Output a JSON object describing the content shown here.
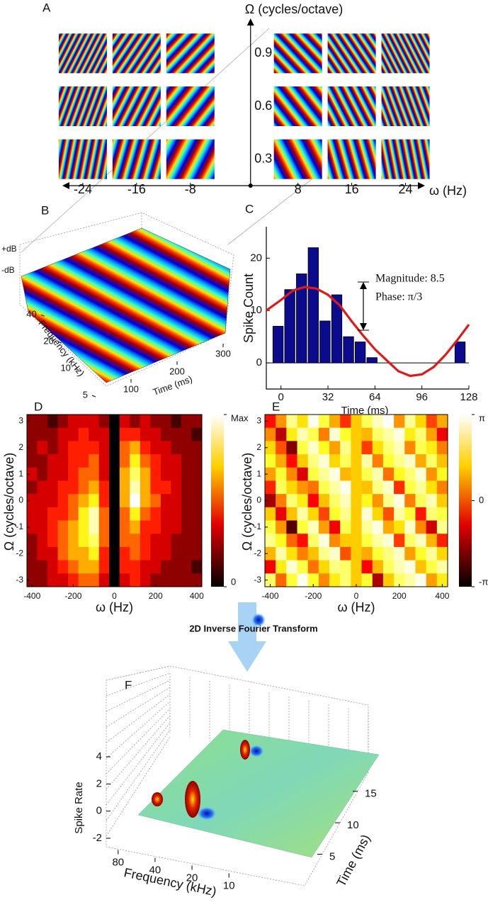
{
  "chart_data": [
    {
      "type": "grating_grid",
      "label": "A",
      "ylabel": "Ω (cycles/octave)",
      "xlabel": "ω (Hz)",
      "xticks": [
        -24,
        -16,
        -8,
        8,
        16,
        24
      ],
      "yticks": [
        0.3,
        0.6,
        0.9
      ],
      "xlim": [
        -30,
        29
      ],
      "ylim": [
        0.15,
        1.05
      ]
    },
    {
      "type": "surface",
      "label": "B",
      "zlabels": [
        "+dB",
        "-dB"
      ],
      "ylabel": "Frequency (kHz)",
      "yticks": [
        5,
        10,
        20,
        40
      ],
      "ylim": [
        5,
        50
      ],
      "log_y": true,
      "xlabel": "Time (ms)",
      "xticks": [
        100,
        200,
        300
      ],
      "xlim": [
        0,
        320
      ]
    },
    {
      "type": "bar",
      "label": "C",
      "ylabel": "Spike Count",
      "xlabel": "Time (ms)",
      "x": [
        -2,
        6,
        14,
        22,
        30,
        38,
        46,
        54,
        62,
        122
      ],
      "values": [
        7,
        14,
        17,
        22,
        8,
        13,
        5,
        4,
        1,
        4
      ],
      "color": "#0b0b8e",
      "line": {
        "x": [
          -10,
          0,
          8,
          16,
          24,
          32,
          40,
          48,
          56,
          64,
          72,
          80,
          88,
          96,
          104,
          112,
          120,
          128
        ],
        "values": [
          10,
          12,
          13.8,
          14.5,
          14.2,
          13,
          11,
          8,
          5.2,
          2.6,
          0.5,
          -1.6,
          -2.5,
          -2.2,
          -0.8,
          1.5,
          4.3,
          7.3
        ],
        "color": "#e01818"
      },
      "annotations": [
        "Magnitude: 8.5",
        "Phase: π/3"
      ],
      "xlim": [
        -10,
        128
      ],
      "ylim": [
        -5,
        26
      ],
      "xticks": [
        0,
        32,
        64,
        96,
        128
      ],
      "yticks": [
        0,
        10,
        20
      ]
    },
    {
      "type": "heatmap",
      "label": "D",
      "ylabel": "Ω (cycles/octave)",
      "xlabel": "ω (Hz)",
      "x": [
        -400,
        -350,
        -300,
        -250,
        -200,
        -150,
        -100,
        -50,
        0,
        50,
        100,
        150,
        200,
        250,
        300,
        350,
        400
      ],
      "y": [
        3,
        2.5,
        2,
        1.5,
        1,
        0.5,
        0,
        -0.5,
        -1,
        -1.5,
        -2,
        -2.5,
        -3
      ],
      "values": [
        [
          2,
          2,
          1,
          2,
          3,
          3,
          3,
          2,
          0,
          3,
          2,
          3,
          2,
          2,
          1,
          2,
          2
        ],
        [
          2,
          2,
          2,
          3,
          3,
          4,
          3,
          3,
          0,
          4,
          4,
          3,
          3,
          2,
          2,
          2,
          1
        ],
        [
          2,
          3,
          2,
          3,
          4,
          4,
          4,
          3,
          0,
          5,
          6,
          4,
          3,
          3,
          2,
          2,
          2
        ],
        [
          2,
          2,
          3,
          3,
          4,
          4,
          5,
          3,
          0,
          5,
          7,
          5,
          4,
          3,
          3,
          2,
          2
        ],
        [
          3,
          2,
          3,
          3,
          4,
          5,
          5,
          3,
          0,
          6,
          8,
          6,
          4,
          3,
          3,
          2,
          2
        ],
        [
          2,
          3,
          3,
          4,
          4,
          5,
          6,
          4,
          0,
          6,
          9,
          6,
          4,
          4,
          3,
          2,
          2
        ],
        [
          3,
          3,
          3,
          4,
          5,
          6,
          7,
          4,
          0,
          6,
          10,
          6,
          5,
          3,
          3,
          2,
          2
        ],
        [
          3,
          3,
          4,
          4,
          5,
          7,
          9,
          5,
          0,
          5,
          7,
          5,
          4,
          3,
          3,
          2,
          2
        ],
        [
          3,
          3,
          4,
          5,
          6,
          7,
          9,
          5,
          0,
          5,
          6,
          4,
          4,
          3,
          3,
          2,
          2
        ],
        [
          2,
          3,
          4,
          5,
          6,
          7,
          8,
          5,
          0,
          5,
          5,
          4,
          3,
          3,
          2,
          2,
          2
        ],
        [
          2,
          3,
          3,
          5,
          6,
          6,
          7,
          4,
          0,
          4,
          5,
          4,
          3,
          3,
          2,
          2,
          2
        ],
        [
          2,
          2,
          3,
          4,
          5,
          6,
          6,
          4,
          0,
          4,
          4,
          3,
          3,
          2,
          2,
          2,
          1
        ],
        [
          2,
          2,
          3,
          3,
          4,
          5,
          5,
          3,
          0,
          3,
          4,
          3,
          2,
          2,
          2,
          2,
          2
        ]
      ],
      "xlim": [
        -425,
        425
      ],
      "ylim": [
        -3.25,
        3.25
      ],
      "xticks": [
        -400,
        -200,
        0,
        200,
        400
      ],
      "yticks": [
        -3,
        -2,
        -1,
        0,
        1,
        2,
        3
      ],
      "zlim": [
        0,
        10
      ],
      "zticks": [
        {
          "value": 10,
          "label": "Max"
        },
        0
      ]
    },
    {
      "type": "heatmap",
      "label": "E",
      "ylabel": "Ω (cycles/octave)",
      "xlabel": "ω (Hz)",
      "x": [
        -400,
        -350,
        -300,
        -250,
        -200,
        -150,
        -100,
        -50,
        0,
        50,
        100,
        150,
        200,
        250,
        300,
        350,
        400
      ],
      "y": [
        3,
        2.5,
        2,
        1.5,
        1,
        0.5,
        0,
        -0.5,
        -1,
        -1.5,
        -2,
        -2.5,
        -3
      ],
      "values": [
        [
          -0.8,
          0.4,
          2.2,
          1.1,
          3.0,
          1.6,
          0.6,
          -0.5,
          0.9,
          1.8,
          2.6,
          3.1,
          0.4,
          2.3,
          1.0,
          -0.3,
          0.6
        ],
        [
          0.3,
          -1.5,
          1.2,
          2.5,
          1.7,
          0.2,
          2.8,
          1.4,
          0.9,
          0.7,
          1.9,
          2.4,
          2.9,
          1.2,
          2.0,
          0.5,
          -1.0
        ],
        [
          1.0,
          -0.2,
          -2.0,
          1.6,
          2.7,
          1.3,
          0.5,
          2.2,
          0.9,
          -0.4,
          1.1,
          2.0,
          2.6,
          0.3,
          1.7,
          1.2,
          0.2
        ],
        [
          1.4,
          0.6,
          -0.8,
          0.9,
          2.1,
          2.8,
          1.0,
          1.8,
          0.9,
          2.4,
          0.2,
          1.5,
          2.2,
          2.7,
          0.6,
          1.9,
          0.8
        ],
        [
          0.5,
          1.5,
          0.3,
          -1.2,
          1.6,
          2.3,
          2.9,
          0.7,
          0.9,
          1.7,
          2.5,
          0.1,
          1.3,
          2.0,
          2.8,
          0.4,
          1.3
        ],
        [
          -0.6,
          1.8,
          1.0,
          0.4,
          0.1,
          1.7,
          2.4,
          3.0,
          0.9,
          0.8,
          2.1,
          2.7,
          -0.5,
          1.6,
          2.3,
          1.1,
          0.2
        ],
        [
          -1.7,
          0.2,
          2.0,
          1.2,
          -0.9,
          0.8,
          1.9,
          2.6,
          0.9,
          1.3,
          0.4,
          2.2,
          2.9,
          0.2,
          1.8,
          2.5,
          0.9
        ],
        [
          0.9,
          -1.1,
          0.8,
          2.4,
          1.0,
          -0.3,
          1.4,
          2.2,
          0.9,
          2.8,
          1.0,
          -0.2,
          2.4,
          1.5,
          -0.7,
          2.0,
          1.6
        ],
        [
          1.6,
          0.4,
          -2.4,
          1.5,
          2.6,
          0.5,
          -1.0,
          1.7,
          0.9,
          2.3,
          2.9,
          0.6,
          1.1,
          2.7,
          0.3,
          -1.3,
          2.2
        ],
        [
          2.2,
          1.3,
          0.0,
          -0.8,
          1.9,
          2.9,
          0.3,
          0.9,
          0.9,
          1.6,
          2.4,
          2.8,
          -0.4,
          1.9,
          2.6,
          0.7,
          -0.6
        ],
        [
          0.7,
          2.4,
          1.1,
          0.2,
          0.8,
          2.2,
          2.7,
          -0.2,
          0.9,
          0.6,
          1.5,
          2.1,
          2.7,
          0.5,
          1.4,
          2.3,
          1.0
        ],
        [
          -1.0,
          1.2,
          2.8,
          1.6,
          0.1,
          1.0,
          2.1,
          1.9,
          0.9,
          -0.9,
          0.7,
          1.8,
          2.5,
          2.9,
          0.8,
          1.6,
          2.4
        ],
        [
          1.9,
          0.0,
          1.5,
          3.0,
          1.4,
          0.3,
          1.2,
          2.0,
          0.9,
          1.5,
          -1.6,
          0.9,
          1.9,
          2.4,
          3.0,
          0.5,
          1.2
        ]
      ],
      "xlim": [
        -425,
        425
      ],
      "ylim": [
        -3.25,
        3.25
      ],
      "xticks": [
        -400,
        -200,
        0,
        200,
        400
      ],
      "yticks": [
        -3,
        -2,
        -1,
        0,
        1,
        2,
        3
      ],
      "zlim": [
        -3.1416,
        3.1416
      ],
      "zticks": [
        {
          "value": 3.1416,
          "label": "π"
        },
        0,
        {
          "value": -3.1416,
          "label": "-π"
        }
      ]
    },
    {
      "type": "surface3d",
      "label": "F",
      "annotation": "2D Inverse Fourier Transform",
      "zlabel": "Spike Rate",
      "zticks": [
        -2,
        0,
        2,
        4
      ],
      "zlim": [
        -2,
        4
      ],
      "ylabel": "Frequency (kHz)",
      "yticks": [
        80,
        40,
        20,
        10
      ],
      "ylim": [
        100,
        8
      ],
      "log_y": true,
      "xlabel": "Time (ms)",
      "xticks": [
        5,
        10,
        15
      ],
      "xlim": [
        0,
        18
      ]
    }
  ]
}
